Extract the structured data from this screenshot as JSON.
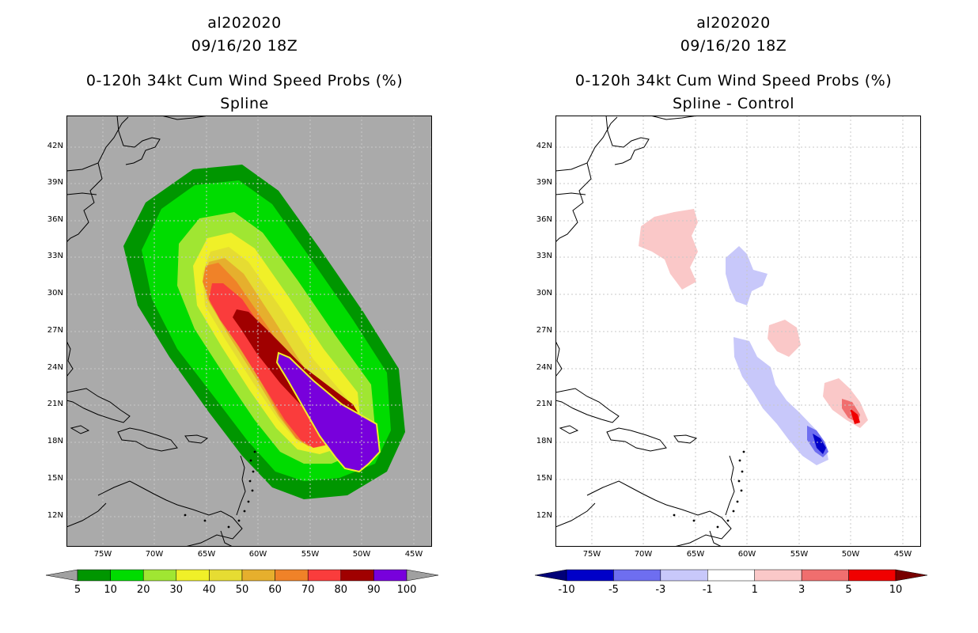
{
  "left": {
    "storm_id": "al202020",
    "datetime": "09/16/20 18Z",
    "title": "0-120h 34kt Cum Wind Speed Probs (%)",
    "subtitle": "Spline",
    "colorbar": {
      "colors": [
        "#009600",
        "#00dc00",
        "#a0e632",
        "#f0f028",
        "#e6dc32",
        "#e6af2d",
        "#f08228",
        "#fa3c3c",
        "#a00000",
        "#7800dc"
      ],
      "labels": [
        "5",
        "10",
        "20",
        "30",
        "40",
        "50",
        "60",
        "70",
        "80",
        "90",
        "100"
      ],
      "end_color": "#a0a0a0"
    }
  },
  "right": {
    "storm_id": "al202020",
    "datetime": "09/16/20 18Z",
    "title": "0-120h 34kt Cum Wind Speed Probs (%)",
    "subtitle": "Spline - Control",
    "colorbar": {
      "colors": [
        "#0000c8",
        "#6e6ef0",
        "#c8c8fa",
        "#ffffff",
        "#fac8c8",
        "#f06e6e",
        "#f00000"
      ],
      "labels": [
        "-10",
        "-5",
        "-3",
        "-1",
        "1",
        "3",
        "5",
        "10"
      ],
      "end_low": "#000078",
      "end_high": "#780000"
    }
  },
  "lat_labels": [
    "42N",
    "39N",
    "36N",
    "33N",
    "30N",
    "27N",
    "24N",
    "21N",
    "18N",
    "15N",
    "12N"
  ],
  "lon_labels": [
    "75W",
    "70W",
    "65W",
    "60W",
    "55W",
    "50W",
    "45W"
  ],
  "map_colors": {
    "background_left": "#aaaaaa",
    "coast": "#000000",
    "grid": "#bbbbbb"
  }
}
